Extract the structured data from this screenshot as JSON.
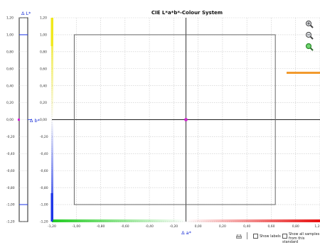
{
  "chart_data": {
    "type": "scatter",
    "title": "CIE L*a*b*-Colour System",
    "xlabel": "Δ a*",
    "ylabel": "Δ b*",
    "lightness_label": "Δ L*",
    "xlim": [
      -1.2,
      1.2
    ],
    "ylim": [
      -1.2,
      1.2
    ],
    "lightness_lim": [
      -1.2,
      1.2
    ],
    "grid": true,
    "x_ticks": [
      "-1,20",
      "-1,00",
      "-0,80",
      "-0,60",
      "-0,40",
      "-0,20",
      "0,00",
      "0,20",
      "0,40",
      "0,60",
      "0,80",
      "1,2"
    ],
    "y_ticks": [
      "1,20",
      "1,00",
      "0,80",
      "0,60",
      "0,40",
      "0,20",
      "0,00",
      "-0,20",
      "-0,40",
      "-0,60",
      "-0,80",
      "-1,00",
      "-1,20"
    ],
    "lightness_ticks": [
      "1,20",
      "1,00",
      "0,80",
      "0,60",
      "0,40",
      "0,20",
      "0,00",
      "-0,20",
      "-0,40",
      "-0,60",
      "-0,80",
      "-1,00",
      "-1,20"
    ],
    "tolerance_box": {
      "a_min": -1.0,
      "a_max": 0.8,
      "b_min": -1.0,
      "b_max": 1.0
    },
    "tolerance_lightness": {
      "upper": 1.0,
      "lower": -1.0
    },
    "points": [
      {
        "a": 0.0,
        "b": 0.0,
        "color": "#d81bd8"
      }
    ],
    "lightness_marker": {
      "value": 0.0,
      "color": "#d81bd8"
    },
    "legend_swatch_color": "#f29a2e",
    "colors": {
      "positive_a": "#e81010",
      "negative_a": "#22cc22",
      "positive_b": "#f0e81a",
      "negative_b": "#1a33e8",
      "tolerance": "#666666"
    }
  },
  "controls": {
    "show_labels": "Show labels",
    "show_all_samples": "Show all samples from this standard"
  },
  "icons": {
    "zoom_in": "zoom-in-icon",
    "zoom_out": "zoom-out-icon",
    "zoom_reset": "zoom-fit-icon",
    "print": "print-icon"
  }
}
